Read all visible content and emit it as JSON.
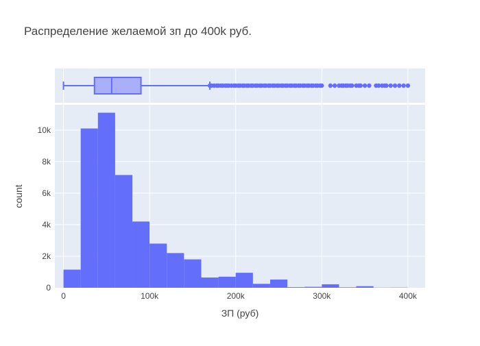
{
  "chart_data": {
    "type": "histogram",
    "title": "Распределение желаемой зп до 400k руб.",
    "xlabel": "ЗП (руб)",
    "ylabel": "count",
    "xlim": [
      -10000,
      420000
    ],
    "ylim": [
      0,
      11600
    ],
    "x_ticks": [
      {
        "value": 0,
        "label": "0"
      },
      {
        "value": 100000,
        "label": "100k"
      },
      {
        "value": 200000,
        "label": "200k"
      },
      {
        "value": 300000,
        "label": "300k"
      },
      {
        "value": 400000,
        "label": "400k"
      }
    ],
    "y_ticks": [
      {
        "value": 0,
        "label": "0"
      },
      {
        "value": 2000,
        "label": "2k"
      },
      {
        "value": 4000,
        "label": "4k"
      },
      {
        "value": 6000,
        "label": "6k"
      },
      {
        "value": 8000,
        "label": "8k"
      },
      {
        "value": 10000,
        "label": "10k"
      }
    ],
    "bin_width": 20000,
    "bins": [
      {
        "start": 0,
        "end": 20000,
        "count": 1150
      },
      {
        "start": 20000,
        "end": 40000,
        "count": 10100
      },
      {
        "start": 40000,
        "end": 60000,
        "count": 11100
      },
      {
        "start": 60000,
        "end": 80000,
        "count": 7150
      },
      {
        "start": 80000,
        "end": 100000,
        "count": 4200
      },
      {
        "start": 100000,
        "end": 120000,
        "count": 2800
      },
      {
        "start": 120000,
        "end": 140000,
        "count": 2200
      },
      {
        "start": 140000,
        "end": 160000,
        "count": 1800
      },
      {
        "start": 160000,
        "end": 180000,
        "count": 650
      },
      {
        "start": 180000,
        "end": 200000,
        "count": 700
      },
      {
        "start": 200000,
        "end": 220000,
        "count": 950
      },
      {
        "start": 220000,
        "end": 240000,
        "count": 250
      },
      {
        "start": 240000,
        "end": 260000,
        "count": 520
      },
      {
        "start": 260000,
        "end": 280000,
        "count": 40
      },
      {
        "start": 280000,
        "end": 300000,
        "count": 60
      },
      {
        "start": 300000,
        "end": 320000,
        "count": 220
      },
      {
        "start": 320000,
        "end": 340000,
        "count": 30
      },
      {
        "start": 340000,
        "end": 360000,
        "count": 100
      },
      {
        "start": 360000,
        "end": 380000,
        "count": 10
      },
      {
        "start": 380000,
        "end": 400000,
        "count": 15
      }
    ],
    "marginal_box": {
      "min": 0,
      "q1": 36000,
      "median": 56000,
      "q3": 90000,
      "upper_fence": 170000,
      "outliers": [
        170000,
        172000,
        175000,
        178000,
        180000,
        183000,
        185000,
        188000,
        190000,
        192000,
        195000,
        198000,
        200000,
        203000,
        205000,
        208000,
        210000,
        213000,
        215000,
        218000,
        220000,
        223000,
        225000,
        228000,
        230000,
        233000,
        235000,
        238000,
        240000,
        243000,
        245000,
        248000,
        250000,
        253000,
        255000,
        258000,
        260000,
        263000,
        265000,
        268000,
        270000,
        273000,
        275000,
        278000,
        280000,
        283000,
        285000,
        288000,
        290000,
        293000,
        295000,
        298000,
        300000,
        310000,
        315000,
        320000,
        323000,
        325000,
        328000,
        330000,
        333000,
        335000,
        340000,
        343000,
        345000,
        350000,
        355000,
        363000,
        366000,
        370000,
        373000,
        375000,
        380000,
        385000,
        390000,
        395000,
        400000
      ]
    },
    "colors": {
      "bar": "#636efa",
      "box_fill": "#a9aff8",
      "box_line": "#636efa",
      "plot_bg": "#e5ecf6",
      "grid": "#ffffff",
      "text": "#444444"
    },
    "grid": true,
    "legend": "none"
  }
}
